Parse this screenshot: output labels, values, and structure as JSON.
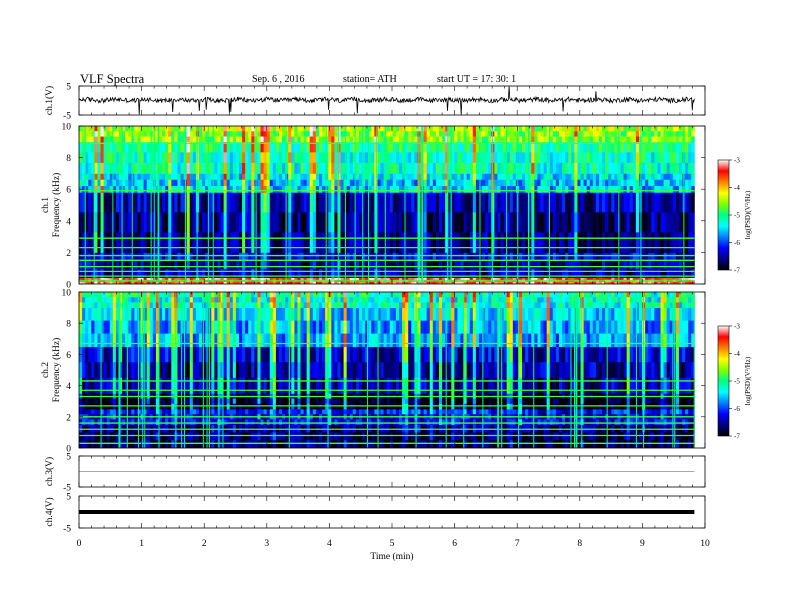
{
  "header": {
    "title": "VLF  Spectra",
    "date": "Sep. 6  , 2016",
    "station": "station= ATH",
    "start": "start  UT  =   17: 30: 1"
  },
  "x_axis": {
    "label": "Time  (min)",
    "ticks": [
      "0",
      "1",
      "2",
      "3",
      "4",
      "5",
      "6",
      "7",
      "8",
      "9",
      "10"
    ],
    "range": [
      0,
      10
    ],
    "data_end": 9.83
  },
  "panels": {
    "ch1_wave": {
      "ylabel": "ch.1(V)",
      "ticks": [
        "5",
        "-5"
      ]
    },
    "ch1_spec": {
      "ylabel_top": "ch.1",
      "ylabel": "Frequency  (kHz)",
      "ticks": [
        "10",
        "8",
        "6",
        "4",
        "2",
        "0"
      ]
    },
    "ch2_spec": {
      "ylabel_top": "ch.2",
      "ylabel": "Frequency  (kHz)",
      "ticks": [
        "10",
        "8",
        "6",
        "4",
        "2",
        "0"
      ]
    },
    "ch3_wave": {
      "ylabel": "ch.3(V)",
      "ticks": [
        "5",
        "-5"
      ]
    },
    "ch4_wave": {
      "ylabel": "ch.4(V)",
      "ticks": [
        "5",
        "-5"
      ]
    }
  },
  "colorbar": {
    "label": "log(PSD)(V²/Hz)",
    "ticks": [
      "-3",
      "-4",
      "-5",
      "-6",
      "-7"
    ],
    "colors": [
      "#000000",
      "#000080",
      "#0000ff",
      "#0080ff",
      "#00ffff",
      "#00ff80",
      "#80ff00",
      "#ffff00",
      "#ff8000",
      "#ff0000",
      "#ffffff"
    ]
  },
  "chart_data": [
    {
      "type": "line",
      "title": "ch.1(V)",
      "xlabel": "Time  (min)",
      "ylabel": "ch.1(V)",
      "xlim": [
        0,
        10
      ],
      "ylim": [
        -5,
        5
      ],
      "x_end": 9.83,
      "baseline": 0.2,
      "noise_amplitude": 0.8,
      "spikes": [
        -5,
        5
      ]
    },
    {
      "type": "heatmap",
      "title": "ch.1 Frequency (kHz)",
      "xlabel": "Time  (min)",
      "ylabel": "Frequency  (kHz)",
      "xlim": [
        0,
        10
      ],
      "ylim": [
        0,
        10
      ],
      "x_end": 9.83,
      "zlim": [
        -7,
        -3
      ],
      "zlabel": "log(PSD)(V²/Hz)",
      "band_levels": [
        {
          "f_from": 0.0,
          "f_to": 0.4,
          "logPSD": -3.5
        },
        {
          "f_from": 0.4,
          "f_to": 2.0,
          "logPSD": -6.5
        },
        {
          "f_from": 2.0,
          "f_to": 5.8,
          "logPSD": -6.6
        },
        {
          "f_from": 5.8,
          "f_to": 7.0,
          "logPSD": -5.6
        },
        {
          "f_from": 7.0,
          "f_to": 9.0,
          "logPSD": -5.2
        },
        {
          "f_from": 9.0,
          "f_to": 10.0,
          "logPSD": -4.6
        }
      ],
      "lines_kHz": [
        0.2,
        0.5,
        0.8,
        1.1,
        1.5,
        1.8,
        2.3,
        2.9,
        5.9,
        8.9
      ]
    },
    {
      "type": "heatmap",
      "title": "ch.2 Frequency (kHz)",
      "xlabel": "Time  (min)",
      "ylabel": "Frequency  (kHz)",
      "xlim": [
        0,
        10
      ],
      "ylim": [
        0,
        10
      ],
      "x_end": 9.83,
      "zlim": [
        -7,
        -3
      ],
      "zlabel": "log(PSD)(V²/Hz)",
      "band_levels": [
        {
          "f_from": 0.0,
          "f_to": 1.5,
          "logPSD": -6.8
        },
        {
          "f_from": 1.5,
          "f_to": 2.5,
          "logPSD": -6.3
        },
        {
          "f_from": 2.5,
          "f_to": 3.5,
          "logPSD": -7.0
        },
        {
          "f_from": 3.5,
          "f_to": 6.5,
          "logPSD": -6.5
        },
        {
          "f_from": 6.5,
          "f_to": 9.0,
          "logPSD": -5.7
        },
        {
          "f_from": 9.0,
          "f_to": 10.0,
          "logPSD": -5.3
        }
      ],
      "lines_kHz": [
        0.3,
        0.8,
        1.2,
        1.6,
        2.0,
        2.7,
        3.3,
        3.7,
        4.3,
        6.7
      ]
    },
    {
      "type": "line",
      "title": "ch.3(V)",
      "xlabel": "Time  (min)",
      "ylabel": "ch.3(V)",
      "xlim": [
        0,
        10
      ],
      "ylim": [
        -5,
        5
      ],
      "x_end": 9.83,
      "values": [
        0,
        0
      ]
    },
    {
      "type": "line",
      "title": "ch.4(V)",
      "xlabel": "Time  (min)",
      "ylabel": "ch.4(V)",
      "xlim": [
        0,
        10
      ],
      "ylim": [
        -5,
        5
      ],
      "x_end": 9.83,
      "values": [
        0,
        0
      ]
    }
  ]
}
